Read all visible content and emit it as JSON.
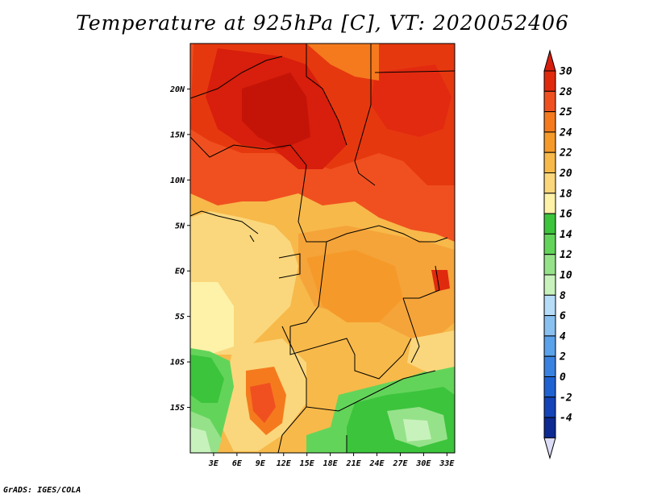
{
  "title": "Temperature at 925hPa [C], VT: 2020052406",
  "credit": "GrADS: IGES/COLA",
  "map": {
    "lon_range": [
      0,
      34
    ],
    "lat_range": [
      -20,
      25
    ],
    "lat_ticks": [
      {
        "value": 20,
        "label": "20N"
      },
      {
        "value": 15,
        "label": "15N"
      },
      {
        "value": 10,
        "label": "10N"
      },
      {
        "value": 5,
        "label": "5N"
      },
      {
        "value": 0,
        "label": "EQ"
      },
      {
        "value": -5,
        "label": "5S"
      },
      {
        "value": -10,
        "label": "10S"
      },
      {
        "value": -15,
        "label": "15S"
      }
    ],
    "lon_ticks": [
      {
        "value": 3,
        "label": "3E"
      },
      {
        "value": 6,
        "label": "6E"
      },
      {
        "value": 9,
        "label": "9E"
      },
      {
        "value": 12,
        "label": "12E"
      },
      {
        "value": 15,
        "label": "15E"
      },
      {
        "value": 18,
        "label": "18E"
      },
      {
        "value": 21,
        "label": "21E"
      },
      {
        "value": 24,
        "label": "24E"
      },
      {
        "value": 27,
        "label": "27E"
      },
      {
        "value": 30,
        "label": "30E"
      },
      {
        "value": 33,
        "label": "33E"
      }
    ]
  },
  "colorbar": {
    "levels": [
      {
        "label": "30",
        "color": "#e02a0e"
      },
      {
        "label": "28",
        "color": "#f05020"
      },
      {
        "label": "25",
        "color": "#f57a1e"
      },
      {
        "label": "24",
        "color": "#f59a2a"
      },
      {
        "label": "22",
        "color": "#f7b94a"
      },
      {
        "label": "20",
        "color": "#fad77c"
      },
      {
        "label": "18",
        "color": "#fdf2a8"
      },
      {
        "label": "16",
        "color": "#3cc43c"
      },
      {
        "label": "14",
        "color": "#63d45a"
      },
      {
        "label": "12",
        "color": "#96e28a"
      },
      {
        "label": "10",
        "color": "#c8f2bc"
      },
      {
        "label": "8",
        "color": "#b6dcf8"
      },
      {
        "label": "6",
        "color": "#88c0f0"
      },
      {
        "label": "4",
        "color": "#5aa2ea"
      },
      {
        "label": "2",
        "color": "#3a82e0"
      },
      {
        "label": "0",
        "color": "#1f62d2"
      },
      {
        "label": "-2",
        "color": "#1444b8"
      },
      {
        "label": "-4",
        "color": "#0c2a92"
      }
    ],
    "top_triangle_color": "#d61e0e",
    "bottom_triangle_color": "#dcdcf6",
    "bottom_band_color": "#0a1a6e"
  }
}
